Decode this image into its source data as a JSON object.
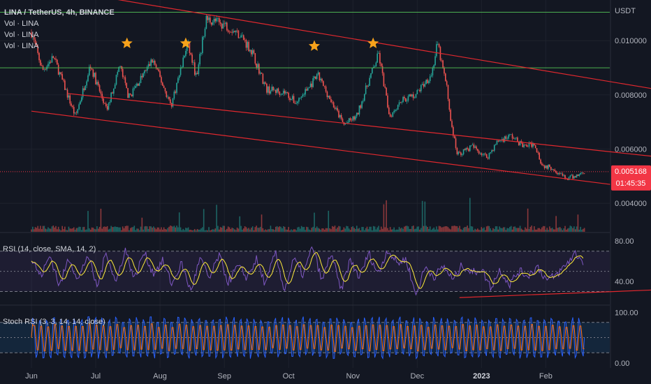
{
  "header": {
    "symbol": "LINA / TetherUS, 4h, BINANCE",
    "volume_labels": [
      "Vol · LINA",
      "Vol · LINA",
      "Vol · LINA"
    ],
    "currency": "USDT"
  },
  "price_badge": {
    "price": "0.005168",
    "countdown": "01:45:35",
    "color": "#f23645"
  },
  "colors": {
    "background": "#131722",
    "up": "#26a69a",
    "down": "#ef5350",
    "channel": "#e0282e",
    "level": "#4caf50",
    "star": "#f7a21b",
    "rsi": "#7e57c2",
    "rsi_ma": "#ffeb3b",
    "stoch_k": "#2962ff",
    "stoch_d": "#ff6d00"
  },
  "indicators": {
    "rsi_label": "RSI (14, close, SMA, 14, 2)",
    "stoch_label": "Stoch RSI (3, 3, 14, 14, close)"
  },
  "chart_data": [
    {
      "type": "candlestick",
      "title": "LINA / TetherUS, 4h, BINANCE",
      "price_axis_labels": [
        "0.010000",
        "0.008000",
        "0.006000",
        "0.004000"
      ],
      "ylim": [
        0.00295,
        0.0115
      ],
      "time_axis_labels": [
        "Jun",
        "Jul",
        "Aug",
        "Sep",
        "Oct",
        "Nov",
        "Dec",
        "2023",
        "Feb"
      ],
      "last_price": 0.005168,
      "close_path": [
        {
          "t": 0,
          "v": 0.0103
        },
        {
          "t": 0.6,
          "v": 0.0089
        },
        {
          "t": 1.2,
          "v": 0.0094
        },
        {
          "t": 2.4,
          "v": 0.0072
        },
        {
          "t": 3.2,
          "v": 0.0091
        },
        {
          "t": 4.1,
          "v": 0.0074
        },
        {
          "t": 4.8,
          "v": 0.0091
        },
        {
          "t": 5.3,
          "v": 0.0079
        },
        {
          "t": 6.6,
          "v": 0.0093
        },
        {
          "t": 7.6,
          "v": 0.0076
        },
        {
          "t": 8.5,
          "v": 0.0099
        },
        {
          "t": 9.0,
          "v": 0.0086
        },
        {
          "t": 9.5,
          "v": 0.0108
        },
        {
          "t": 10.5,
          "v": 0.0106
        },
        {
          "t": 11.4,
          "v": 0.0102
        },
        {
          "t": 12.0,
          "v": 0.0096
        },
        {
          "t": 12.8,
          "v": 0.0082
        },
        {
          "t": 13.8,
          "v": 0.0081
        },
        {
          "t": 14.4,
          "v": 0.0077
        },
        {
          "t": 15.6,
          "v": 0.0087
        },
        {
          "t": 16.3,
          "v": 0.0078
        },
        {
          "t": 17.0,
          "v": 0.0069
        },
        {
          "t": 17.7,
          "v": 0.0072
        },
        {
          "t": 18.3,
          "v": 0.0084
        },
        {
          "t": 18.9,
          "v": 0.0095
        },
        {
          "t": 19.5,
          "v": 0.0072
        },
        {
          "t": 20.1,
          "v": 0.0078
        },
        {
          "t": 20.9,
          "v": 0.008
        },
        {
          "t": 21.8,
          "v": 0.0088
        },
        {
          "t": 22.1,
          "v": 0.0099
        },
        {
          "t": 22.6,
          "v": 0.0083
        },
        {
          "t": 22.9,
          "v": 0.0067
        },
        {
          "t": 23.2,
          "v": 0.0058
        },
        {
          "t": 24.0,
          "v": 0.0061
        },
        {
          "t": 24.8,
          "v": 0.0057
        },
        {
          "t": 25.4,
          "v": 0.0063
        },
        {
          "t": 26.1,
          "v": 0.0065
        },
        {
          "t": 26.8,
          "v": 0.0061
        },
        {
          "t": 27.4,
          "v": 0.0062
        },
        {
          "t": 27.8,
          "v": 0.0054
        },
        {
          "t": 28.4,
          "v": 0.0053
        },
        {
          "t": 29.1,
          "v": 0.0049
        },
        {
          "t": 29.6,
          "v": 0.005
        },
        {
          "t": 30.1,
          "v": 0.005168
        }
      ],
      "horizontal_levels": [
        0.01105,
        0.009
      ],
      "channel_lines": [
        {
          "from": {
            "t": 3.5,
            "v": 0.01165
          },
          "to": {
            "t": 34.5,
            "v": 0.00815
          }
        },
        {
          "from": {
            "t": 2.0,
            "v": 0.00805
          },
          "to": {
            "t": 34.0,
            "v": 0.00572
          }
        },
        {
          "from": {
            "t": 0,
            "v": 0.0074
          },
          "to": {
            "t": 31.5,
            "v": 0.0047
          }
        }
      ],
      "star_markers": [
        {
          "t": 5.2,
          "v": 0.0099
        },
        {
          "t": 8.4,
          "v": 0.0099
        },
        {
          "t": 15.4,
          "v": 0.0098
        },
        {
          "t": 18.6,
          "v": 0.0099
        }
      ]
    },
    {
      "type": "line",
      "title": "RSI (14, close, SMA, 14, 2)",
      "ylim": [
        20,
        85
      ],
      "axis_labels": [
        "80.00",
        "40.00"
      ],
      "bands": [
        70,
        50,
        30
      ],
      "series": [
        {
          "values": [
            62,
            45,
            66,
            35,
            64,
            41,
            67,
            34,
            70,
            38,
            72,
            42,
            69,
            48,
            60,
            37,
            58,
            30,
            63,
            42,
            66,
            39,
            55,
            44,
            62,
            36,
            69,
            31,
            62,
            46,
            75,
            40,
            69,
            30,
            61,
            44,
            68,
            47,
            72,
            58,
            62,
            26,
            54,
            45,
            55,
            41,
            57,
            48,
            53,
            34,
            52,
            37,
            50,
            46,
            55,
            41,
            46,
            56,
            68,
            59
          ]
        }
      ],
      "trend_line": {
        "from": {
          "t": 23.3,
          "v": 24
        },
        "to": {
          "t": 34.5,
          "v": 32
        }
      }
    },
    {
      "type": "line",
      "title": "Stoch RSI (3, 3, 14, 14, close)",
      "ylim": [
        -10,
        110
      ],
      "axis_labels": [
        "100.00",
        "0.00"
      ],
      "bands": [
        80,
        50,
        20
      ],
      "oscillations": 160
    }
  ]
}
